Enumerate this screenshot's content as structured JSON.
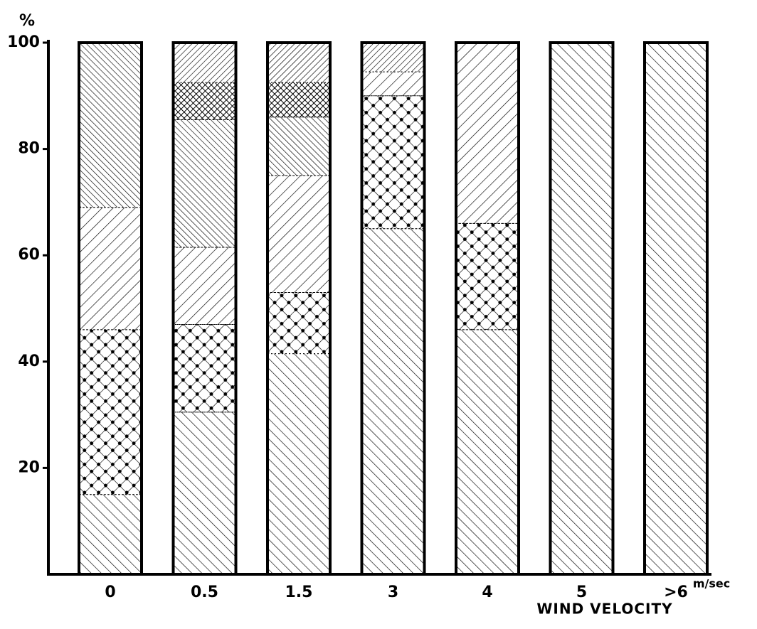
{
  "chart_data": {
    "type": "stacked-bar",
    "y_label": "%",
    "x_label": "WIND VELOCITY",
    "x_unit": "m/sec",
    "categories": [
      "0",
      "0.5",
      "1.5",
      "3",
      "4",
      "5",
      ">6"
    ],
    "series": [
      {
        "pattern": "sparse-back",
        "color": "#000000",
        "values": [
          15,
          30.5,
          41.5,
          65,
          46,
          100,
          100
        ]
      },
      {
        "pattern": "dot-cross",
        "color": "#000000",
        "values": [
          31,
          16.5,
          11.5,
          25,
          20,
          0,
          0
        ]
      },
      {
        "pattern": "sparse-forward",
        "color": "#000000",
        "values": [
          23,
          14.5,
          22,
          4.5,
          34,
          0,
          0
        ]
      },
      {
        "pattern": "dense-back",
        "color": "#000000",
        "values": [
          31,
          24,
          11,
          0,
          0,
          0,
          0
        ]
      },
      {
        "pattern": "dense-cross",
        "color": "#000000",
        "values": [
          0,
          7,
          6.5,
          0,
          0,
          0,
          0
        ]
      },
      {
        "pattern": "dense-forward",
        "color": "#000000",
        "values": [
          0,
          7.5,
          7.5,
          5.5,
          0,
          0,
          0
        ]
      }
    ],
    "ylim": [
      0,
      100
    ],
    "yticks": [
      20,
      40,
      60,
      80,
      100
    ]
  }
}
